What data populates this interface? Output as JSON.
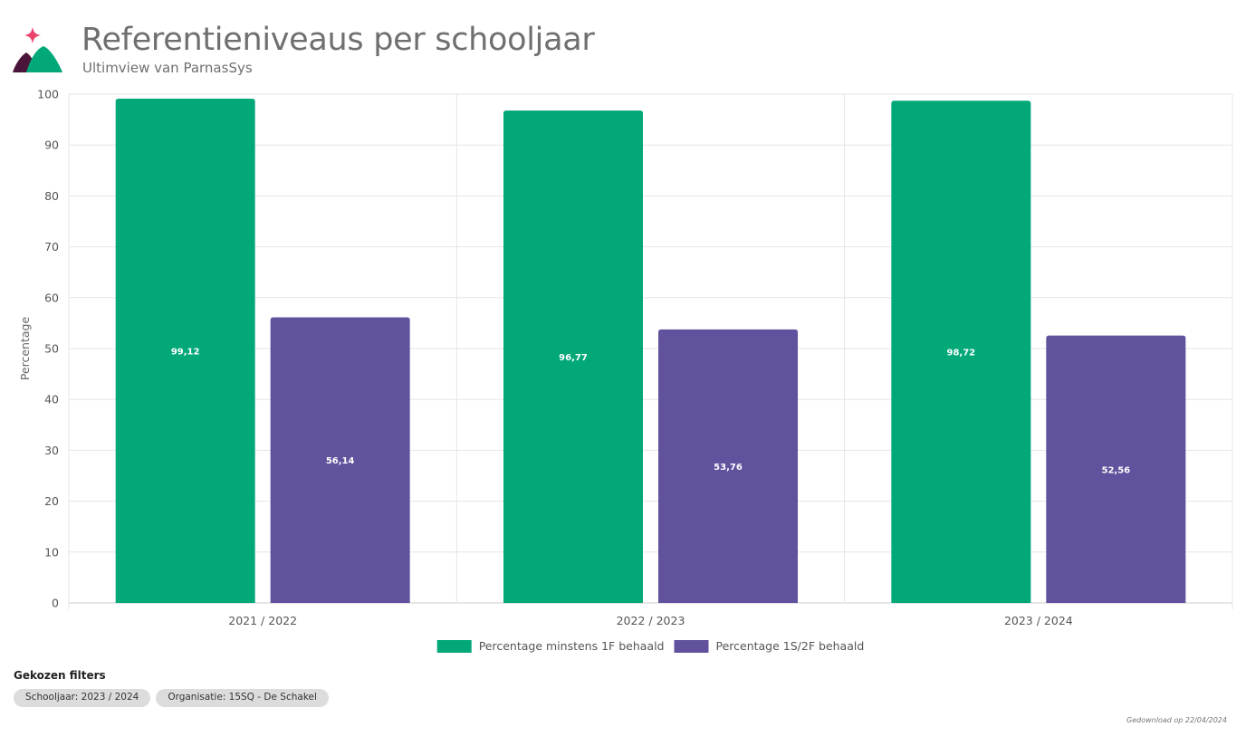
{
  "header": {
    "title": "Referentieniveaus per schooljaar",
    "subtitle": "Ultimview van ParnasSys"
  },
  "colors": {
    "series1": "#03a879",
    "series2": "#62519d",
    "logo_star": "#e8426d",
    "logo_dark": "#4a1538",
    "logo_green": "#03a879"
  },
  "chart_data": {
    "type": "bar",
    "title": "",
    "xlabel": "",
    "ylabel": "Percentage",
    "ylim": [
      0,
      100
    ],
    "yticks": [
      0,
      10,
      20,
      30,
      40,
      50,
      60,
      70,
      80,
      90,
      100
    ],
    "grid": true,
    "legend_position": "bottom",
    "categories": [
      "2021 / 2022",
      "2022 / 2023",
      "2023 / 2024"
    ],
    "series": [
      {
        "name": "Percentage minstens 1F behaald",
        "values": [
          99.12,
          96.77,
          98.72
        ],
        "labels": [
          "99,12",
          "96,77",
          "98,72"
        ]
      },
      {
        "name": "Percentage 1S/2F behaald",
        "values": [
          56.14,
          53.76,
          52.56
        ],
        "labels": [
          "56,14",
          "53,76",
          "52,56"
        ]
      }
    ]
  },
  "filters": {
    "title": "Gekozen filters",
    "chips": [
      "Schooljaar: 2023 / 2024",
      "Organisatie: 15SQ - De Schakel"
    ]
  },
  "footer": {
    "download_text": "Gedownload op 22/04/2024"
  }
}
